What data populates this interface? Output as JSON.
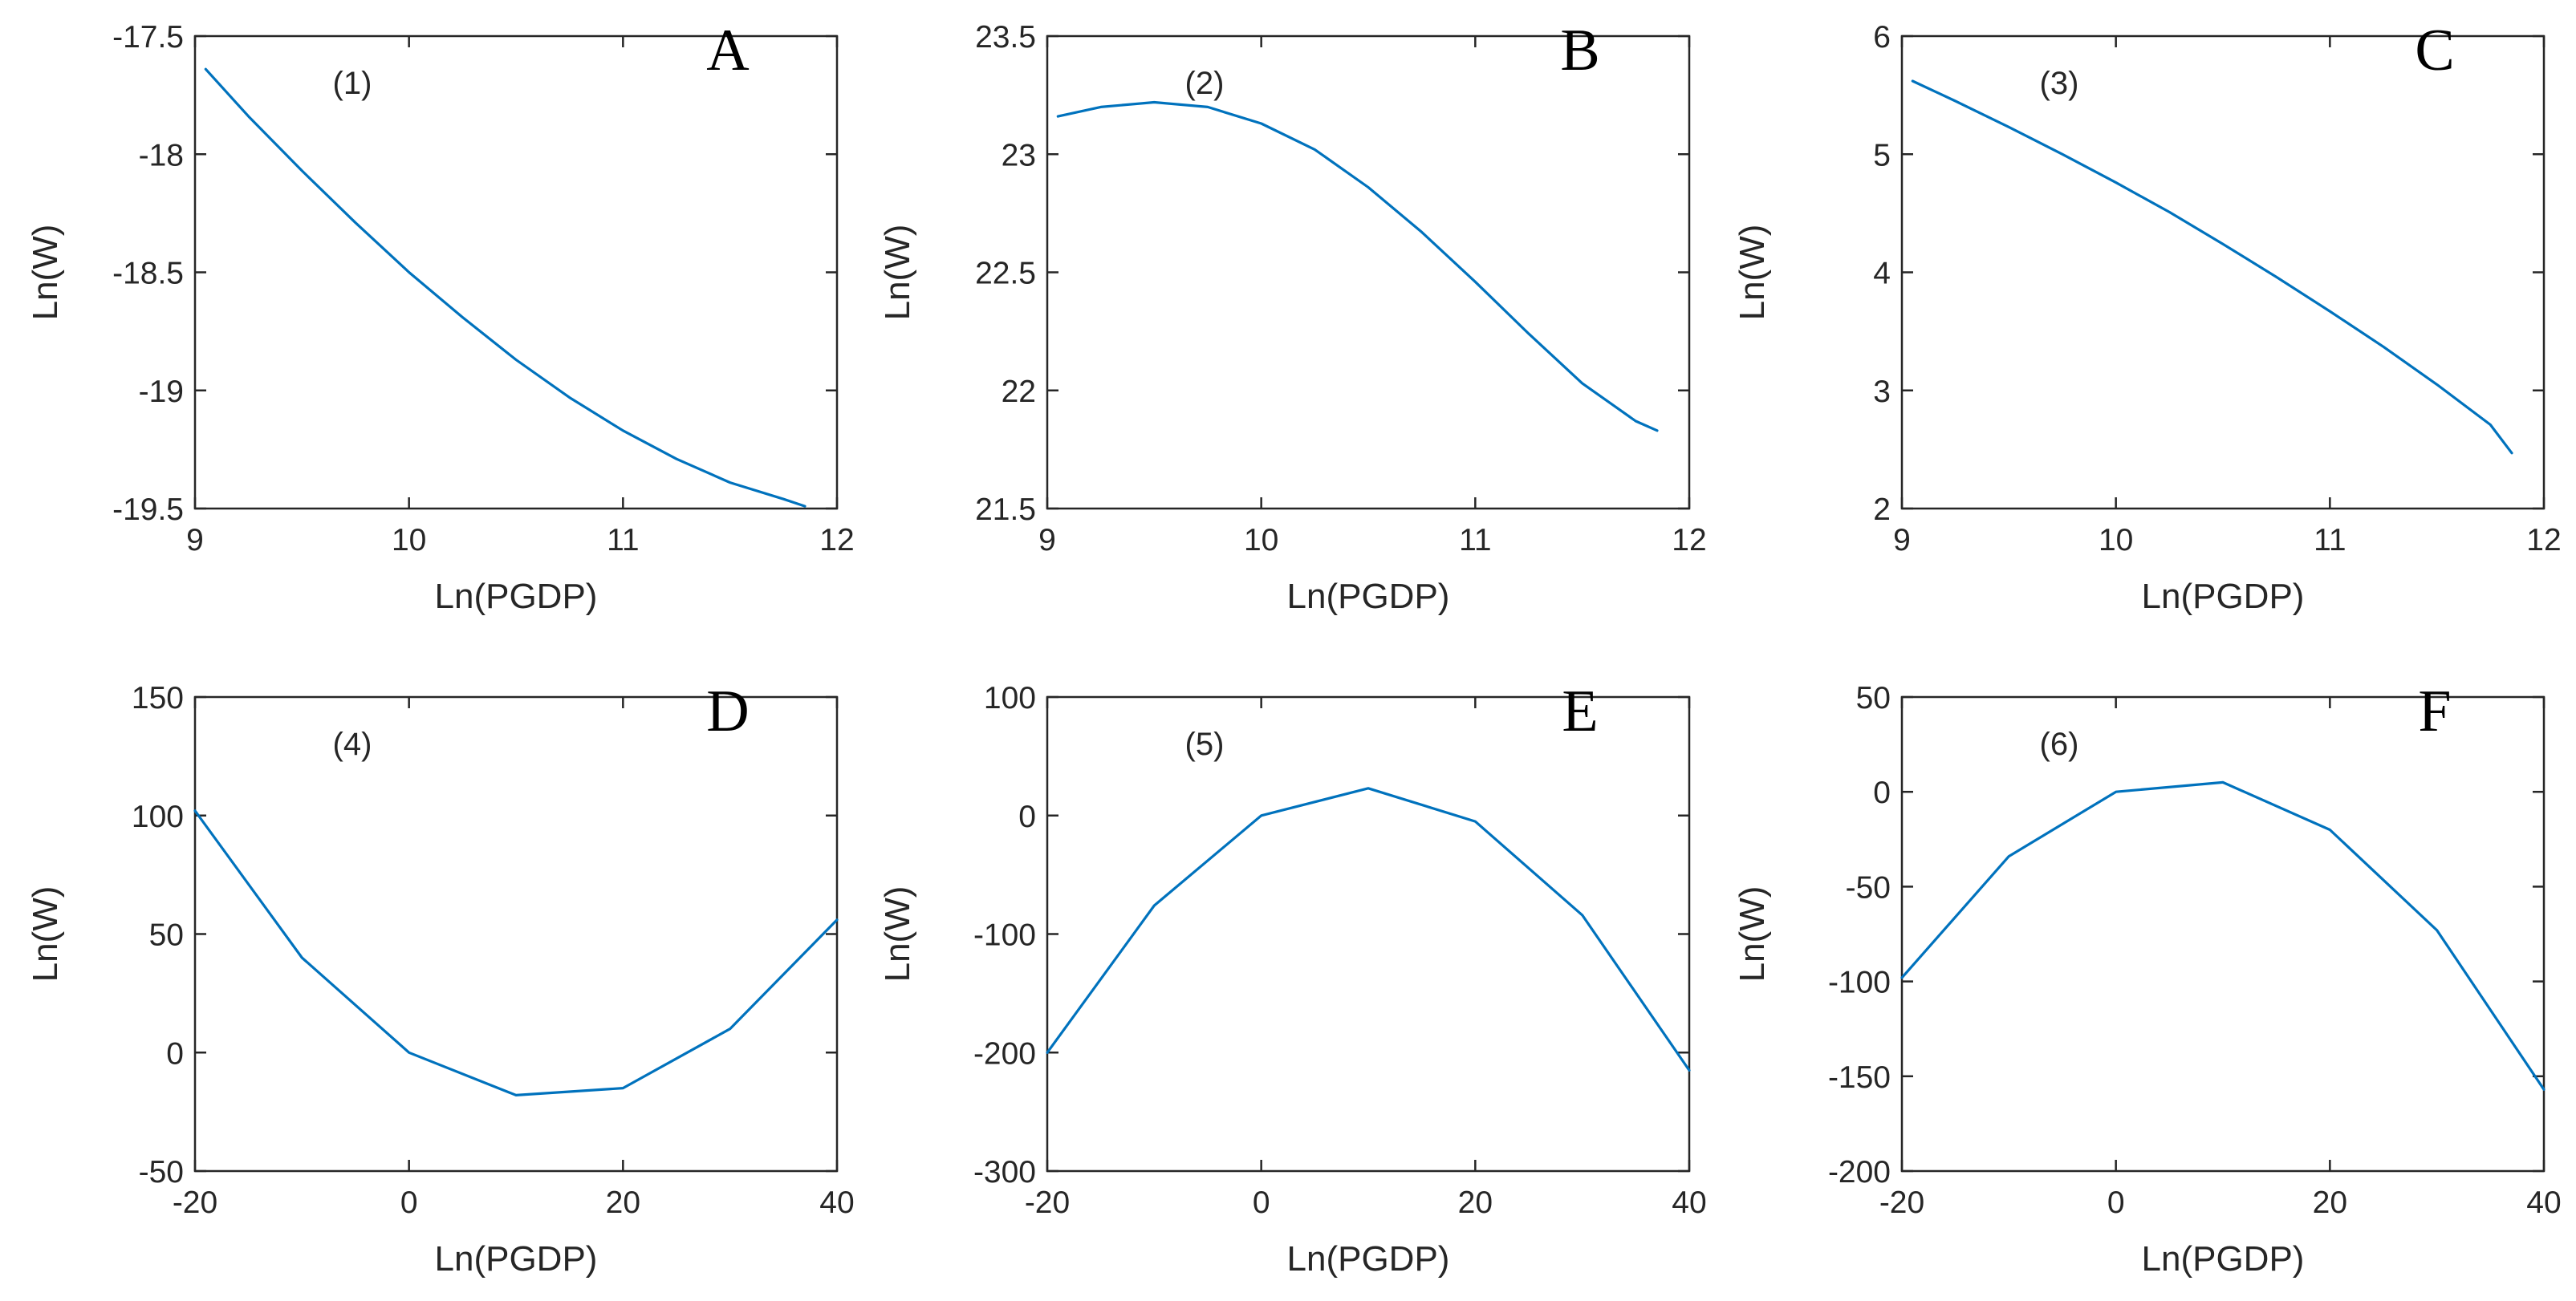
{
  "figure": {
    "line_color": "#0072BD",
    "axis_color": "#262626"
  },
  "chart_data": [
    {
      "panel": "A",
      "label": "(1)",
      "type": "line",
      "xlabel": "Ln(PGDP)",
      "ylabel": "Ln(W)",
      "xlim": [
        9,
        12
      ],
      "ylim": [
        -19.5,
        -17.5
      ],
      "xticks": [
        9,
        10,
        11,
        12
      ],
      "yticks": [
        -17.5,
        -18,
        -18.5,
        -19,
        -19.5
      ],
      "xtick_labels": [
        "9",
        "10",
        "11",
        "12"
      ],
      "ytick_labels": [
        "-17.5",
        "-18",
        "-18.5",
        "-19",
        "-19.5"
      ],
      "series": [
        {
          "name": "Ln(W)",
          "x": [
            9.05,
            9.25,
            9.5,
            9.75,
            10.0,
            10.25,
            10.5,
            10.75,
            11.0,
            11.25,
            11.5,
            11.75,
            11.85
          ],
          "y": [
            -17.64,
            -17.84,
            -18.07,
            -18.29,
            -18.5,
            -18.69,
            -18.87,
            -19.03,
            -19.17,
            -19.29,
            -19.39,
            -19.46,
            -19.49
          ]
        }
      ]
    },
    {
      "panel": "B",
      "label": "(2)",
      "type": "line",
      "xlabel": "Ln(PGDP)",
      "ylabel": "Ln(W)",
      "xlim": [
        9,
        12
      ],
      "ylim": [
        21.5,
        23.5
      ],
      "xticks": [
        9,
        10,
        11,
        12
      ],
      "yticks": [
        23.5,
        23,
        22.5,
        22,
        21.5
      ],
      "xtick_labels": [
        "9",
        "10",
        "11",
        "12"
      ],
      "ytick_labels": [
        "23.5",
        "23",
        "22.5",
        "22",
        "21.5"
      ],
      "series": [
        {
          "name": "Ln(W)",
          "x": [
            9.05,
            9.25,
            9.5,
            9.75,
            10.0,
            10.25,
            10.5,
            10.75,
            11.0,
            11.25,
            11.5,
            11.75,
            11.85
          ],
          "y": [
            23.16,
            23.2,
            23.22,
            23.2,
            23.13,
            23.02,
            22.86,
            22.67,
            22.46,
            22.24,
            22.03,
            21.87,
            21.83
          ]
        }
      ]
    },
    {
      "panel": "C",
      "label": "(3)",
      "type": "line",
      "xlabel": "Ln(PGDP)",
      "ylabel": "Ln(W)",
      "xlim": [
        9,
        12
      ],
      "ylim": [
        2,
        6
      ],
      "xticks": [
        9,
        10,
        11,
        12
      ],
      "yticks": [
        6,
        5,
        4,
        3,
        2
      ],
      "xtick_labels": [
        "9",
        "10",
        "11",
        "12"
      ],
      "ytick_labels": [
        "6",
        "5",
        "4",
        "3",
        "2"
      ],
      "series": [
        {
          "name": "Ln(W)",
          "x": [
            9.05,
            9.25,
            9.5,
            9.75,
            10.0,
            10.25,
            10.5,
            10.75,
            11.0,
            11.25,
            11.5,
            11.75,
            11.85
          ],
          "y": [
            5.62,
            5.45,
            5.23,
            5.0,
            4.76,
            4.51,
            4.24,
            3.96,
            3.67,
            3.37,
            3.05,
            2.71,
            2.47
          ]
        }
      ]
    },
    {
      "panel": "D",
      "label": "(4)",
      "type": "line",
      "xlabel": "Ln(PGDP)",
      "ylabel": "Ln(W)",
      "xlim": [
        -20,
        40
      ],
      "ylim": [
        -50,
        150
      ],
      "xticks": [
        -20,
        0,
        20,
        40
      ],
      "yticks": [
        150,
        100,
        50,
        0,
        -50
      ],
      "xtick_labels": [
        "-20",
        "0",
        "20",
        "40"
      ],
      "ytick_labels": [
        "150",
        "100",
        "50",
        "0",
        "-50"
      ],
      "series": [
        {
          "name": "Ln(W)",
          "x": [
            -20,
            -10,
            0,
            10,
            20,
            30,
            40
          ],
          "y": [
            102,
            40,
            0,
            -18,
            -15,
            10,
            56
          ]
        }
      ]
    },
    {
      "panel": "E",
      "label": "(5)",
      "type": "line",
      "xlabel": "Ln(PGDP)",
      "ylabel": "Ln(W)",
      "xlim": [
        -20,
        40
      ],
      "ylim": [
        -300,
        100
      ],
      "xticks": [
        -20,
        0,
        20,
        40
      ],
      "yticks": [
        100,
        0,
        -100,
        -200,
        -300
      ],
      "xtick_labels": [
        "-20",
        "0",
        "20",
        "40"
      ],
      "ytick_labels": [
        "100",
        "0",
        "-100",
        "-200",
        "-300"
      ],
      "series": [
        {
          "name": "Ln(W)",
          "x": [
            -20,
            -10,
            0,
            10,
            20,
            30,
            40
          ],
          "y": [
            -200,
            -76,
            0,
            23,
            -5,
            -84,
            -215
          ]
        }
      ]
    },
    {
      "panel": "F",
      "label": "(6)",
      "type": "line",
      "xlabel": "Ln(PGDP)",
      "ylabel": "Ln(W)",
      "xlim": [
        -20,
        40
      ],
      "ylim": [
        -200,
        50
      ],
      "xticks": [
        -20,
        0,
        20,
        40
      ],
      "yticks": [
        50,
        0,
        -50,
        -100,
        -150,
        -200
      ],
      "xtick_labels": [
        "-20",
        "0",
        "20",
        "40"
      ],
      "ytick_labels": [
        "50",
        "0",
        "-50",
        "-100",
        "-150",
        "-200"
      ],
      "series": [
        {
          "name": "Ln(W)",
          "x": [
            -20,
            -10,
            0,
            10,
            20,
            30,
            40
          ],
          "y": [
            -98,
            -34,
            0,
            5,
            -20,
            -73,
            -157
          ]
        }
      ]
    }
  ]
}
